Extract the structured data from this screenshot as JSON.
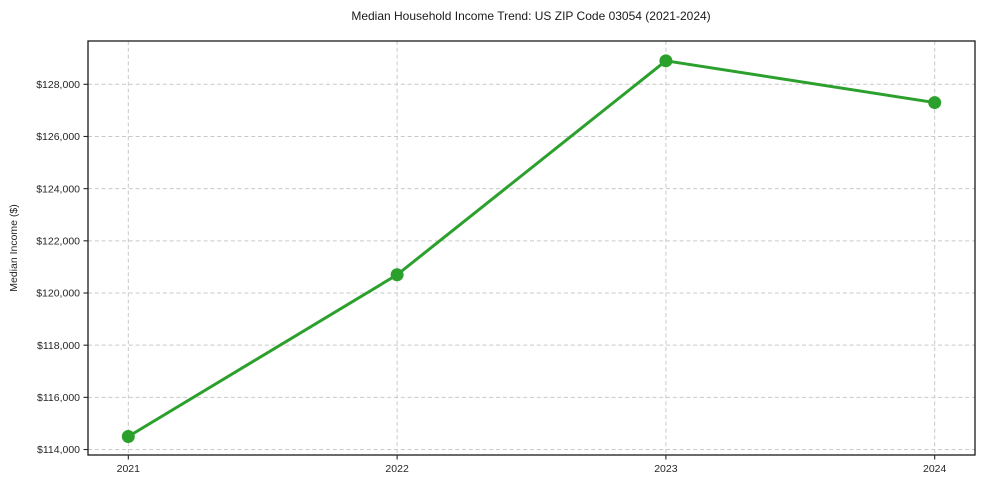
{
  "chart_data": {
    "type": "line",
    "title": "Median Household Income Trend: US ZIP Code 03054 (2021-2024)",
    "xlabel": "",
    "ylabel": "Median Income ($)",
    "x": [
      2021,
      2022,
      2023,
      2024
    ],
    "xtick_labels": [
      "2021",
      "2022",
      "2023",
      "2024"
    ],
    "series": [
      {
        "name": "Median Household Income",
        "values": [
          114500,
          120700,
          128900,
          127300
        ]
      }
    ],
    "yticks": [
      114000,
      116000,
      118000,
      120000,
      122000,
      124000,
      126000,
      128000
    ],
    "ytick_labels": [
      "$114,000",
      "$116,000",
      "$118,000",
      "$120,000",
      "$122,000",
      "$124,000",
      "$126,000",
      "$128,000"
    ],
    "xlim": [
      2020.85,
      2024.15
    ],
    "ylim": [
      113790,
      129660
    ],
    "grid": true,
    "grid_style": "dashed",
    "legend": false,
    "colors": {
      "line": "#2ca02c",
      "marker": "#2ca02c",
      "grid": "#c9c9c9",
      "spine": "#1a1a1a",
      "tick": "#262626",
      "background": "#ffffff"
    },
    "line_width": 3,
    "marker_radius": 6.5
  }
}
